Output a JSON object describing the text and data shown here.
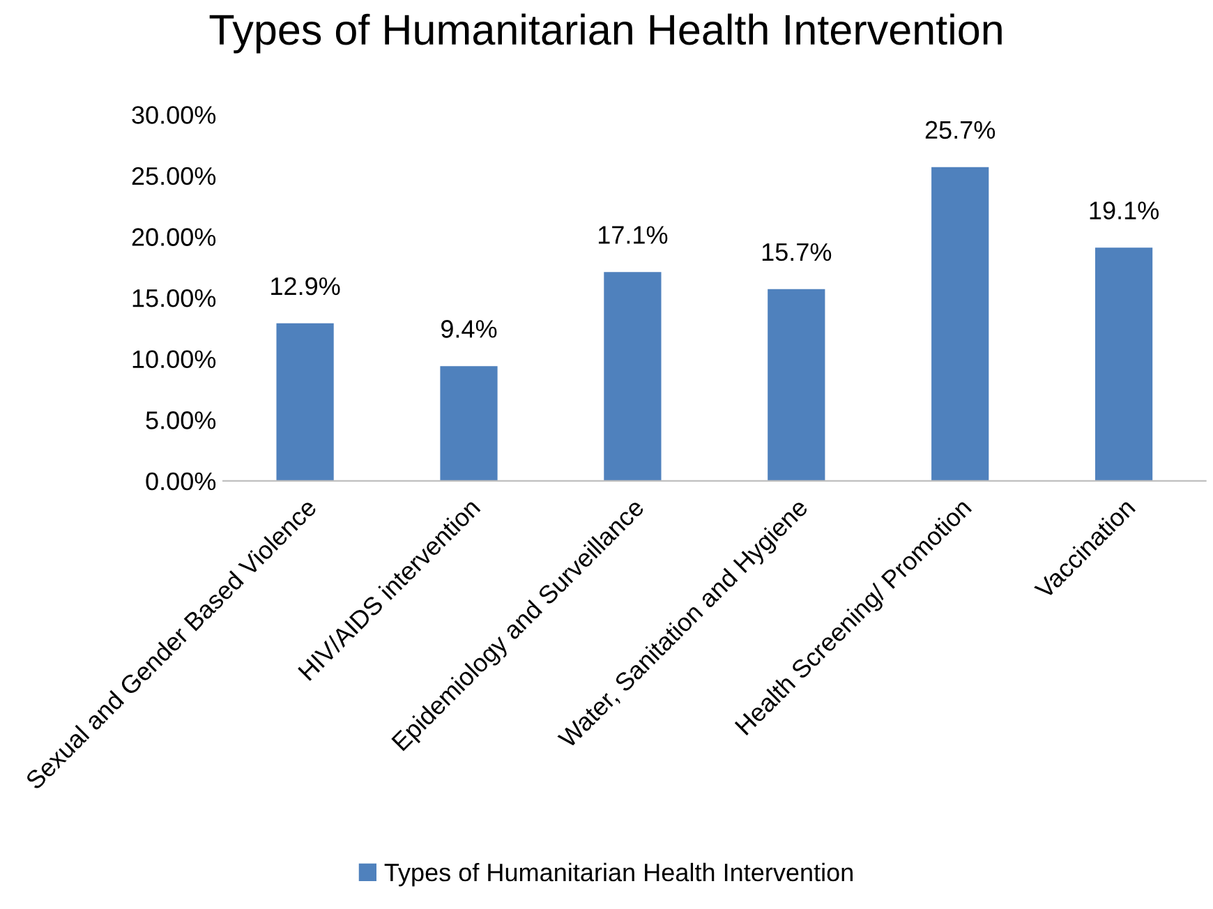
{
  "chart_data": {
    "type": "bar",
    "title": "Types of Humanitarian Health Intervention",
    "categories": [
      "Sexual and Gender Based Violence",
      "HIV/AIDS intervention",
      "Epidemiology and Surveillance",
      "Water, Sanitation and Hygiene",
      "Health Screening/ Promotion",
      "Vaccination"
    ],
    "series": [
      {
        "name": "Types of Humanitarian Health Intervention",
        "color": "#4f81bd",
        "values": [
          12.9,
          9.4,
          17.1,
          15.7,
          25.7,
          19.1
        ],
        "value_labels": [
          "12.9%",
          "9.4%",
          "17.1%",
          "15.7%",
          "25.7%",
          "19.1%"
        ]
      }
    ],
    "ylim": [
      0,
      30
    ],
    "yticks": [
      {
        "value": 0,
        "label": "0.00%"
      },
      {
        "value": 5,
        "label": "5.00%"
      },
      {
        "value": 10,
        "label": "10.00%"
      },
      {
        "value": 15,
        "label": "15.00%"
      },
      {
        "value": 20,
        "label": "20.00%"
      },
      {
        "value": 25,
        "label": "25.00%"
      },
      {
        "value": 30,
        "label": "30.00%"
      }
    ],
    "grid": false,
    "legend": "bottom"
  }
}
